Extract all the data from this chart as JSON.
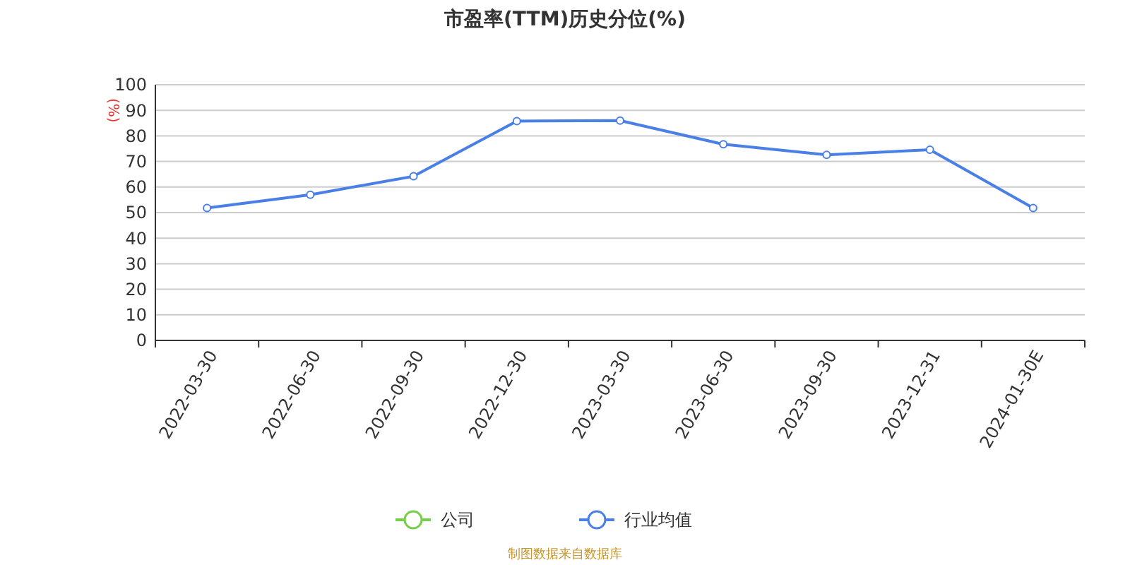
{
  "chart_data": {
    "type": "line",
    "title": "市盈率(TTM)历史分位(%)",
    "ylabel": "(%)",
    "categories": [
      "2022-03-30",
      "2022-06-30",
      "2022-09-30",
      "2022-12-30",
      "2023-03-30",
      "2023-06-30",
      "2023-09-30",
      "2023-12-31",
      "2024-01-30E"
    ],
    "series": [
      {
        "name": "公司",
        "color": "#74d04a",
        "values": [
          null,
          null,
          null,
          null,
          null,
          null,
          null,
          null,
          null
        ]
      },
      {
        "name": "行业均值",
        "color": "#4a7fe6",
        "values": [
          51.8,
          57,
          64.2,
          85.8,
          86,
          76.7,
          72.6,
          74.6,
          51.8
        ]
      }
    ],
    "ylim": [
      0,
      100
    ],
    "yticks": [
      0,
      10,
      20,
      30,
      40,
      50,
      60,
      70,
      80,
      90,
      100
    ],
    "grid": "y",
    "legend": "bottom",
    "marker": "circle",
    "annotations": [
      "制图数据来自数据库"
    ]
  }
}
